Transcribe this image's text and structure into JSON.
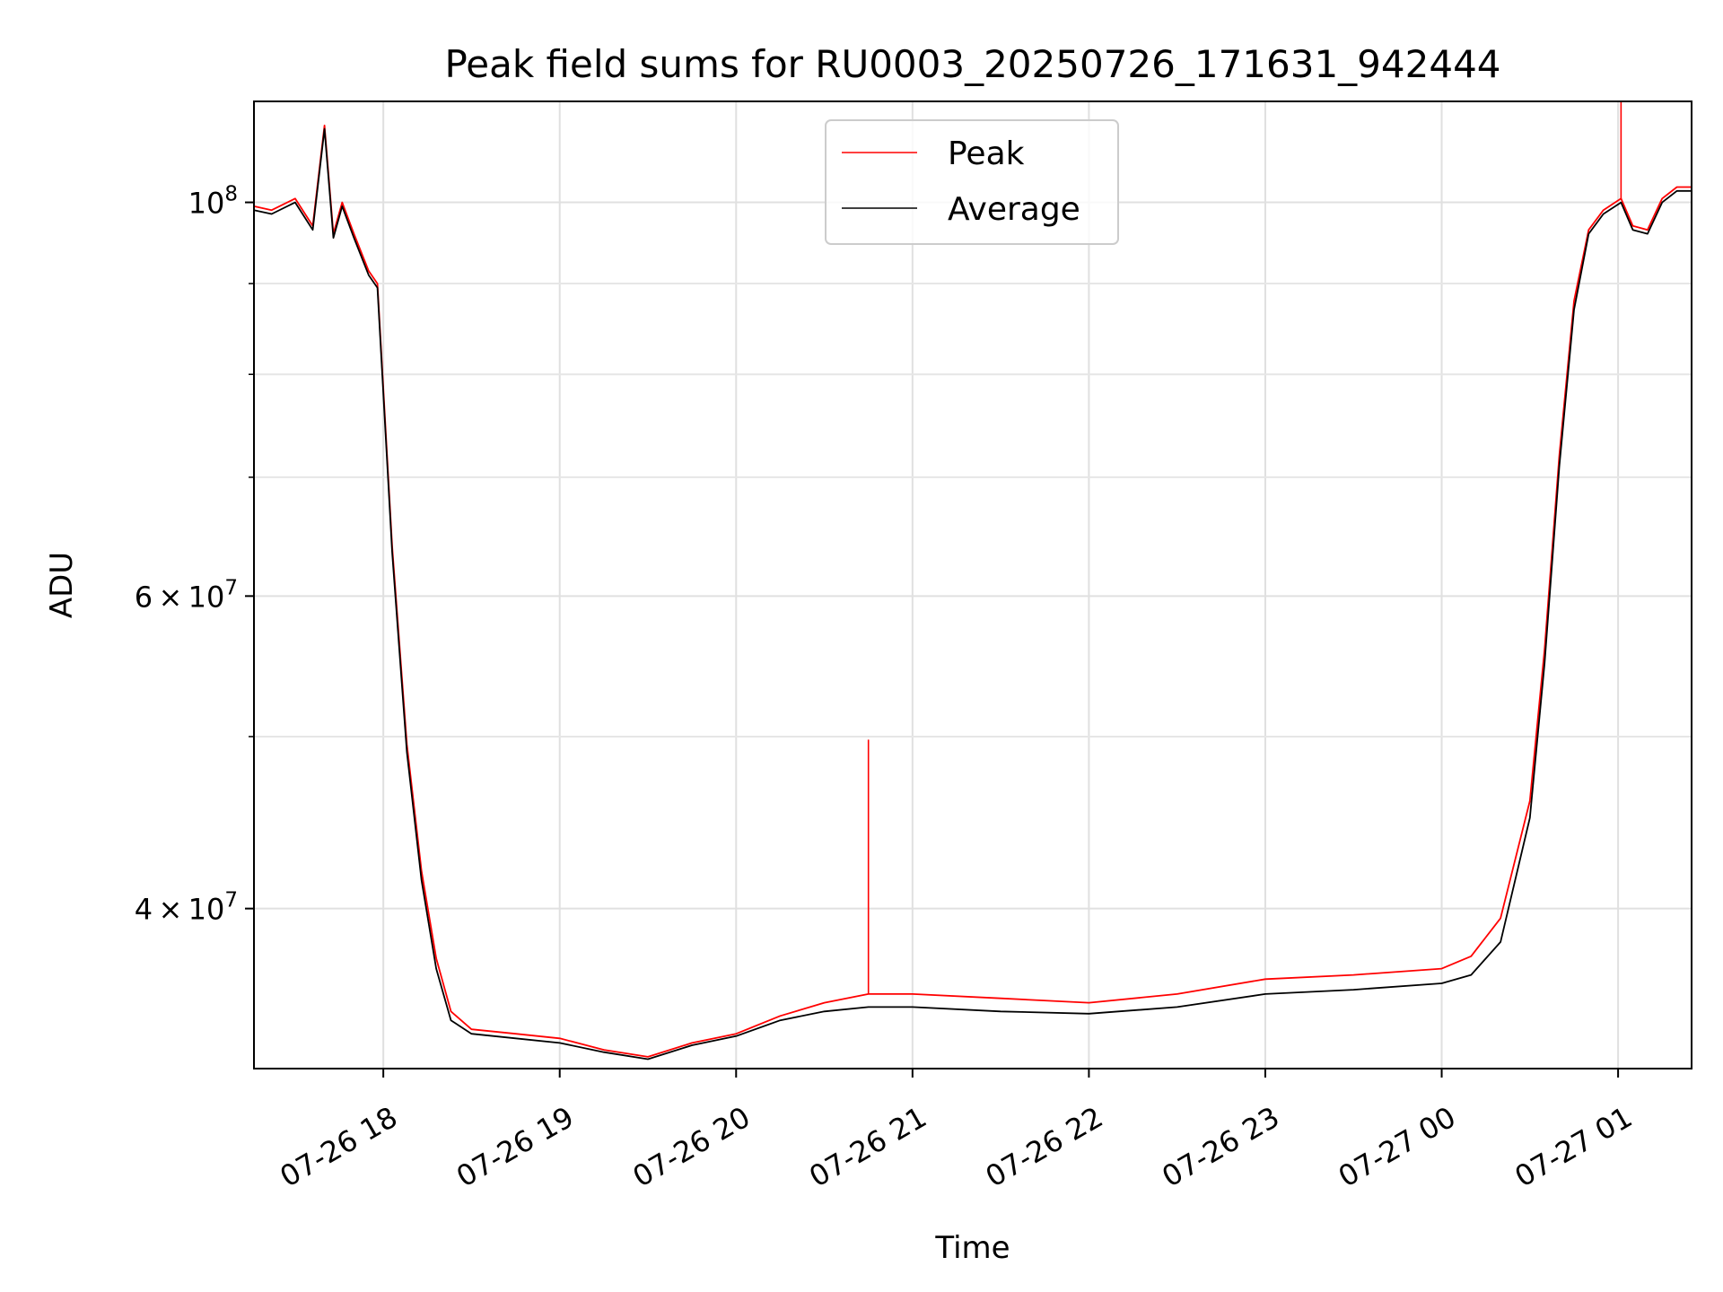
{
  "chart_data": {
    "type": "line",
    "title": "Peak field sums for RU0003_20250726_171631_942444",
    "xlabel": "Time",
    "ylabel": "ADU",
    "x_range": [
      "2025-07-26 17:16",
      "2025-07-27 01:25"
    ],
    "ylim": [
      32500000,
      114000000
    ],
    "y_scale": "log",
    "grid": true,
    "legend_position": "top-center",
    "x_ticks": [
      "07-26 18",
      "07-26 19",
      "07-26 20",
      "07-26 21",
      "07-26 22",
      "07-26 23",
      "07-27 00",
      "07-27 01"
    ],
    "y_ticks": [
      {
        "value": 100000000,
        "base": "10",
        "exp": "8",
        "mant": ""
      },
      {
        "value": 60000000,
        "base": "10",
        "exp": "7",
        "mant": "6 × 10"
      },
      {
        "value": 40000000,
        "base": "10",
        "exp": "7",
        "mant": "4 × 10"
      }
    ],
    "y_minor_ticks": [
      90000000,
      80000000,
      70000000,
      50000000
    ],
    "series": [
      {
        "name": "Peak",
        "color": "#ff0000",
        "x": [
          "2025-07-26 17:16",
          "2025-07-26 17:22",
          "2025-07-26 17:30",
          "2025-07-26 17:36",
          "2025-07-26 17:40",
          "2025-07-26 17:43",
          "2025-07-26 17:46",
          "2025-07-26 17:50",
          "2025-07-26 17:55",
          "2025-07-26 17:58",
          "2025-07-26 18:03",
          "2025-07-26 18:08",
          "2025-07-26 18:13",
          "2025-07-26 18:18",
          "2025-07-26 18:23",
          "2025-07-26 18:30",
          "2025-07-26 18:45",
          "2025-07-26 19:00",
          "2025-07-26 19:15",
          "2025-07-26 19:30",
          "2025-07-26 19:45",
          "2025-07-26 20:00",
          "2025-07-26 20:15",
          "2025-07-26 20:30",
          "2025-07-26 20:45",
          "2025-07-26 21:00",
          "2025-07-26 21:30",
          "2025-07-26 22:00",
          "2025-07-26 22:30",
          "2025-07-26 23:00",
          "2025-07-26 23:30",
          "2025-07-27 00:00",
          "2025-07-27 00:10",
          "2025-07-27 00:20",
          "2025-07-27 00:30",
          "2025-07-27 00:35",
          "2025-07-27 00:40",
          "2025-07-27 00:45",
          "2025-07-27 00:50",
          "2025-07-27 00:55",
          "2025-07-27 01:01",
          "2025-07-27 01:05",
          "2025-07-27 01:10",
          "2025-07-27 01:15",
          "2025-07-27 01:20",
          "2025-07-27 01:25"
        ],
        "values": [
          99500000,
          99000000,
          100500000,
          97000000,
          110500000,
          96000000,
          100000000,
          96000000,
          91500000,
          90000000,
          64000000,
          49500000,
          42000000,
          37500000,
          35000000,
          34200000,
          34000000,
          33800000,
          33300000,
          33000000,
          33600000,
          34000000,
          34800000,
          35400000,
          35800000,
          35800000,
          35600000,
          35400000,
          35800000,
          36500000,
          36700000,
          37000000,
          37600000,
          39500000,
          46000000,
          56000000,
          72000000,
          88000000,
          96500000,
          99000000,
          100500000,
          97000000,
          96500000,
          100500000,
          102000000,
          102000000
        ],
        "spikes": [
          {
            "x": "2025-07-26 20:45",
            "value": 49800000
          },
          {
            "x": "2025-07-27 01:01",
            "value": 114000000
          }
        ]
      },
      {
        "name": "Average",
        "color": "#000000",
        "x": [
          "2025-07-26 17:16",
          "2025-07-26 17:22",
          "2025-07-26 17:30",
          "2025-07-26 17:36",
          "2025-07-26 17:40",
          "2025-07-26 17:43",
          "2025-07-26 17:46",
          "2025-07-26 17:50",
          "2025-07-26 17:55",
          "2025-07-26 17:58",
          "2025-07-26 18:03",
          "2025-07-26 18:08",
          "2025-07-26 18:13",
          "2025-07-26 18:18",
          "2025-07-26 18:23",
          "2025-07-26 18:30",
          "2025-07-26 18:45",
          "2025-07-26 19:00",
          "2025-07-26 19:15",
          "2025-07-26 19:30",
          "2025-07-26 19:45",
          "2025-07-26 20:00",
          "2025-07-26 20:15",
          "2025-07-26 20:30",
          "2025-07-26 20:45",
          "2025-07-26 21:00",
          "2025-07-26 21:30",
          "2025-07-26 22:00",
          "2025-07-26 22:30",
          "2025-07-26 23:00",
          "2025-07-26 23:30",
          "2025-07-27 00:00",
          "2025-07-27 00:10",
          "2025-07-27 00:20",
          "2025-07-27 00:30",
          "2025-07-27 00:35",
          "2025-07-27 00:40",
          "2025-07-27 00:45",
          "2025-07-27 00:50",
          "2025-07-27 00:55",
          "2025-07-27 01:01",
          "2025-07-27 01:05",
          "2025-07-27 01:10",
          "2025-07-27 01:15",
          "2025-07-27 01:20",
          "2025-07-27 01:25"
        ],
        "values": [
          99000000,
          98500000,
          100000000,
          96500000,
          110000000,
          95500000,
          99500000,
          95500000,
          91000000,
          89500000,
          63500000,
          49000000,
          41500000,
          37000000,
          34600000,
          34000000,
          33800000,
          33600000,
          33200000,
          32900000,
          33500000,
          33900000,
          34600000,
          35000000,
          35200000,
          35200000,
          35000000,
          34900000,
          35200000,
          35800000,
          36000000,
          36300000,
          36700000,
          38300000,
          45000000,
          55000000,
          71000000,
          87000000,
          96000000,
          98500000,
          100000000,
          96500000,
          96000000,
          100000000,
          101500000,
          101500000
        ]
      }
    ]
  }
}
